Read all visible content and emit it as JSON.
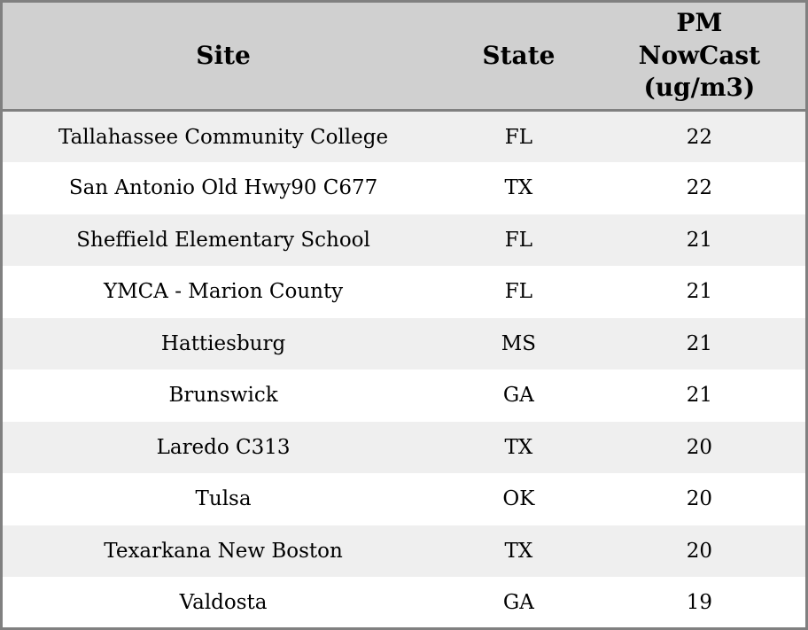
{
  "chart_data": {
    "type": "table",
    "columns": [
      {
        "id": "site",
        "label": "Site"
      },
      {
        "id": "state",
        "label": "State"
      },
      {
        "id": "pm",
        "label": "PM\nNowCast\n(ug/m3)",
        "label_flat": "PM NowCast (ug/m3)"
      }
    ],
    "rows": [
      {
        "site": "Tallahassee Community College",
        "state": "FL",
        "pm": "22"
      },
      {
        "site": "San Antonio Old Hwy90 C677",
        "state": "TX",
        "pm": "22"
      },
      {
        "site": "Sheffield Elementary School",
        "state": "FL",
        "pm": "21"
      },
      {
        "site": "YMCA - Marion County",
        "state": "FL",
        "pm": "21"
      },
      {
        "site": "Hattiesburg",
        "state": "MS",
        "pm": "21"
      },
      {
        "site": "Brunswick",
        "state": "GA",
        "pm": "21"
      },
      {
        "site": "Laredo C313",
        "state": "TX",
        "pm": "20"
      },
      {
        "site": "Tulsa",
        "state": "OK",
        "pm": "20"
      },
      {
        "site": "Texarkana New Boston",
        "state": "TX",
        "pm": "20"
      },
      {
        "site": "Valdosta",
        "state": "GA",
        "pm": "19"
      }
    ]
  },
  "colors": {
    "header_bg": "#d0d0d0",
    "row_odd_bg": "#efefef",
    "row_even_bg": "#ffffff",
    "border": "#808080",
    "text": "#000000"
  }
}
